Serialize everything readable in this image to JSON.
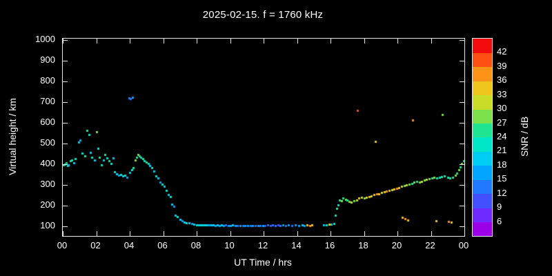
{
  "chart_data": {
    "type": "scatter",
    "title": "2025-02-15. f = 1760 kHz",
    "xlabel": "UT Time / hrs",
    "ylabel": "Virtual height / km",
    "colorbar_label": "SNR / dB",
    "background": "#000000",
    "foreground": "#ffffff",
    "grid": false,
    "legend": "none (colorbar only)",
    "xlim": [
      0,
      24
    ],
    "ylim": [
      53,
      1007
    ],
    "xticks": {
      "values": [
        0,
        2,
        4,
        6,
        8,
        10,
        12,
        14,
        16,
        18,
        20,
        22,
        24
      ],
      "labels": [
        "00",
        "02",
        "04",
        "06",
        "08",
        "10",
        "12",
        "14",
        "16",
        "18",
        "20",
        "22",
        "00"
      ]
    },
    "yticks": {
      "values": [
        100,
        200,
        300,
        400,
        500,
        600,
        700,
        800,
        900,
        1000
      ],
      "labels": [
        "100",
        "200",
        "300",
        "400",
        "500",
        "600",
        "700",
        "800",
        "900",
        "1000"
      ]
    },
    "colorbar": {
      "min": 3,
      "max": 45,
      "step": 3,
      "tick_values": [
        6,
        9,
        12,
        15,
        18,
        21,
        24,
        27,
        30,
        33,
        36,
        39,
        42
      ],
      "colors": [
        "#9b00e8",
        "#6e2aff",
        "#4350ff",
        "#2079ff",
        "#00a5ff",
        "#00cdf2",
        "#00e6c8",
        "#1fe593",
        "#7ce04b",
        "#c8dc28",
        "#f0c51e",
        "#ff9318",
        "#ff5014",
        "#f20c0c"
      ]
    },
    "points_format": [
      "ut_time_hours",
      "virtual_height_km",
      "snr_db"
    ],
    "points": [
      [
        0.05,
        395,
        24
      ],
      [
        0.12,
        400,
        21
      ],
      [
        0.2,
        408,
        24
      ],
      [
        0.28,
        392,
        21
      ],
      [
        0.35,
        398,
        18
      ],
      [
        0.45,
        415,
        24
      ],
      [
        0.55,
        420,
        21
      ],
      [
        0.65,
        405,
        18
      ],
      [
        0.75,
        428,
        21
      ],
      [
        0.95,
        505,
        18
      ],
      [
        1.05,
        515,
        15
      ],
      [
        1.15,
        452,
        21
      ],
      [
        1.3,
        440,
        24
      ],
      [
        1.45,
        565,
        24
      ],
      [
        1.55,
        542,
        21
      ],
      [
        1.65,
        455,
        18
      ],
      [
        1.75,
        432,
        21
      ],
      [
        1.9,
        420,
        18
      ],
      [
        2.0,
        556,
        27
      ],
      [
        2.1,
        478,
        21
      ],
      [
        2.2,
        432,
        24
      ],
      [
        2.3,
        396,
        21
      ],
      [
        2.42,
        420,
        18
      ],
      [
        2.52,
        447,
        24
      ],
      [
        2.62,
        430,
        21
      ],
      [
        2.78,
        415,
        24
      ],
      [
        2.9,
        402,
        21
      ],
      [
        3.0,
        430,
        18
      ],
      [
        3.1,
        362,
        21
      ],
      [
        3.2,
        352,
        18
      ],
      [
        3.32,
        346,
        15
      ],
      [
        3.45,
        350,
        21
      ],
      [
        3.58,
        342,
        18
      ],
      [
        3.7,
        346,
        21
      ],
      [
        3.82,
        337,
        15
      ],
      [
        3.95,
        720,
        12
      ],
      [
        4.05,
        718,
        12
      ],
      [
        4.15,
        722,
        15
      ],
      [
        4.02,
        360,
        18
      ],
      [
        4.12,
        372,
        21
      ],
      [
        4.22,
        382,
        24
      ],
      [
        4.32,
        420,
        27
      ],
      [
        4.42,
        432,
        24
      ],
      [
        4.5,
        446,
        27
      ],
      [
        4.58,
        440,
        24
      ],
      [
        4.68,
        432,
        21
      ],
      [
        4.78,
        426,
        24
      ],
      [
        4.88,
        416,
        21
      ],
      [
        5.0,
        410,
        24
      ],
      [
        5.1,
        402,
        21
      ],
      [
        5.2,
        392,
        18
      ],
      [
        5.32,
        382,
        21
      ],
      [
        5.45,
        365,
        18
      ],
      [
        5.55,
        342,
        21
      ],
      [
        5.68,
        332,
        18
      ],
      [
        5.8,
        312,
        15
      ],
      [
        5.95,
        302,
        21
      ],
      [
        6.05,
        292,
        18
      ],
      [
        6.18,
        272,
        21
      ],
      [
        6.3,
        252,
        18
      ],
      [
        6.42,
        242,
        21
      ],
      [
        6.52,
        207,
        18
      ],
      [
        6.62,
        196,
        15
      ],
      [
        6.72,
        152,
        18
      ],
      [
        6.85,
        146,
        21
      ],
      [
        7.0,
        132,
        18
      ],
      [
        7.12,
        126,
        15
      ],
      [
        7.25,
        121,
        18
      ],
      [
        7.4,
        118,
        21
      ],
      [
        7.55,
        115,
        18
      ],
      [
        7.7,
        112,
        15
      ],
      [
        7.85,
        110,
        18
      ],
      [
        8.0,
        108,
        21
      ],
      [
        8.12,
        107,
        18
      ],
      [
        8.25,
        106,
        21
      ],
      [
        8.38,
        107,
        18
      ],
      [
        8.5,
        106,
        21
      ],
      [
        8.62,
        105,
        18
      ],
      [
        8.75,
        106,
        15
      ],
      [
        8.88,
        105,
        18
      ],
      [
        9.0,
        105,
        18
      ],
      [
        9.12,
        104,
        15
      ],
      [
        9.25,
        105,
        18
      ],
      [
        9.38,
        104,
        15
      ],
      [
        9.5,
        105,
        18
      ],
      [
        9.62,
        104,
        15
      ],
      [
        9.75,
        105,
        12
      ],
      [
        9.88,
        104,
        15
      ],
      [
        10.0,
        104,
        15
      ],
      [
        10.15,
        105,
        18
      ],
      [
        10.3,
        104,
        15
      ],
      [
        10.45,
        103,
        12
      ],
      [
        10.6,
        104,
        15
      ],
      [
        10.75,
        103,
        12
      ],
      [
        10.9,
        104,
        15
      ],
      [
        11.05,
        103,
        15
      ],
      [
        11.2,
        104,
        12
      ],
      [
        11.35,
        103,
        15
      ],
      [
        11.5,
        104,
        12
      ],
      [
        11.65,
        103,
        15
      ],
      [
        11.8,
        104,
        12
      ],
      [
        11.95,
        103,
        15
      ],
      [
        12.1,
        104,
        9
      ],
      [
        12.25,
        105,
        12
      ],
      [
        12.4,
        104,
        9
      ],
      [
        12.55,
        105,
        12
      ],
      [
        12.7,
        104,
        12
      ],
      [
        12.85,
        105,
        9
      ],
      [
        13.0,
        104,
        12
      ],
      [
        13.15,
        105,
        15
      ],
      [
        13.3,
        104,
        12
      ],
      [
        13.5,
        105,
        15
      ],
      [
        13.7,
        104,
        12
      ],
      [
        13.9,
        105,
        15
      ],
      [
        14.1,
        104,
        15
      ],
      [
        14.3,
        105,
        18
      ],
      [
        14.45,
        104,
        15
      ],
      [
        14.6,
        105,
        33
      ],
      [
        14.75,
        104,
        36
      ],
      [
        14.9,
        105,
        33
      ],
      [
        15.6,
        107,
        18
      ],
      [
        15.75,
        108,
        21
      ],
      [
        15.9,
        109,
        33
      ],
      [
        16.05,
        110,
        18
      ],
      [
        16.2,
        112,
        21
      ],
      [
        16.3,
        152,
        21
      ],
      [
        16.38,
        186,
        24
      ],
      [
        16.45,
        202,
        21
      ],
      [
        16.55,
        228,
        24
      ],
      [
        16.65,
        224,
        27
      ],
      [
        16.75,
        236,
        24
      ],
      [
        16.9,
        230,
        27
      ],
      [
        17.0,
        226,
        24
      ],
      [
        17.1,
        220,
        27
      ],
      [
        17.25,
        216,
        30
      ],
      [
        17.4,
        222,
        27
      ],
      [
        17.55,
        228,
        30
      ],
      [
        17.7,
        236,
        33
      ],
      [
        17.85,
        240,
        30
      ],
      [
        18.0,
        236,
        27
      ],
      [
        18.15,
        240,
        30
      ],
      [
        18.3,
        244,
        33
      ],
      [
        18.45,
        248,
        30
      ],
      [
        18.6,
        252,
        33
      ],
      [
        18.75,
        256,
        36
      ],
      [
        18.9,
        258,
        33
      ],
      [
        19.05,
        262,
        30
      ],
      [
        19.2,
        266,
        33
      ],
      [
        19.35,
        270,
        36
      ],
      [
        19.5,
        274,
        33
      ],
      [
        19.65,
        276,
        30
      ],
      [
        19.8,
        280,
        33
      ],
      [
        19.95,
        284,
        36
      ],
      [
        20.1,
        288,
        33
      ],
      [
        20.25,
        292,
        30
      ],
      [
        20.4,
        296,
        27
      ],
      [
        20.55,
        300,
        30
      ],
      [
        20.7,
        304,
        27
      ],
      [
        20.85,
        308,
        24
      ],
      [
        21.0,
        312,
        27
      ],
      [
        21.15,
        316,
        24
      ],
      [
        21.3,
        312,
        27
      ],
      [
        21.45,
        318,
        30
      ],
      [
        21.6,
        322,
        27
      ],
      [
        21.75,
        326,
        30
      ],
      [
        21.9,
        330,
        27
      ],
      [
        22.05,
        332,
        24
      ],
      [
        22.2,
        336,
        27
      ],
      [
        22.35,
        332,
        24
      ],
      [
        22.5,
        336,
        21
      ],
      [
        22.65,
        340,
        24
      ],
      [
        22.8,
        342,
        21
      ],
      [
        23.0,
        336,
        24
      ],
      [
        23.15,
        332,
        21
      ],
      [
        23.3,
        338,
        24
      ],
      [
        23.45,
        346,
        27
      ],
      [
        23.55,
        358,
        24
      ],
      [
        23.65,
        372,
        27
      ],
      [
        23.75,
        388,
        24
      ],
      [
        23.85,
        402,
        27
      ],
      [
        23.95,
        418,
        24
      ],
      [
        17.6,
        660,
        39
      ],
      [
        18.7,
        510,
        33
      ],
      [
        20.9,
        612,
        37
      ],
      [
        22.7,
        640,
        27
      ],
      [
        20.3,
        142,
        33
      ],
      [
        20.45,
        136,
        36
      ],
      [
        20.6,
        130,
        33
      ],
      [
        22.3,
        125,
        33
      ],
      [
        23.05,
        124,
        36
      ],
      [
        23.2,
        119,
        33
      ]
    ]
  }
}
